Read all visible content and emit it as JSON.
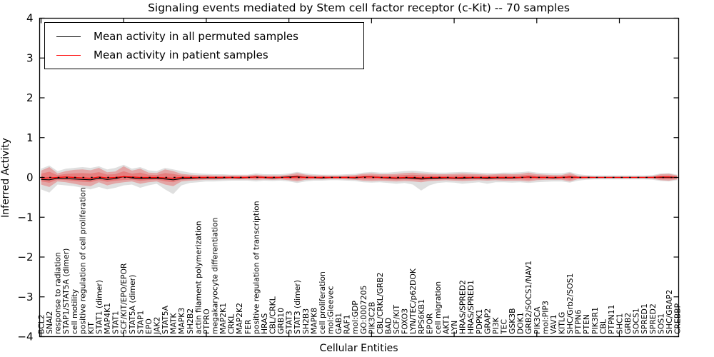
{
  "title": "Signaling events mediated by Stem cell factor receptor (c-Kit) -- 70 samples",
  "axes": {
    "y_label": "Inferred Activity",
    "x_label": "Cellular Entities",
    "y_ticks": [
      "4",
      "3",
      "2",
      "1",
      "0",
      "-1",
      "-2",
      "-3",
      "-4"
    ]
  },
  "legend": {
    "entries": [
      {
        "label": "Mean activity in all permuted samples",
        "color": "#000000"
      },
      {
        "label": "Mean activity in patient samples",
        "color": "#ff0000"
      }
    ]
  },
  "colors": {
    "permuted_line": "#000000",
    "patient_line": "#ff0000",
    "zero_dash_line": "#000000",
    "red_band_fill": "rgba(235,45,45,0.32)",
    "gray_band_fill": "rgba(140,140,140,0.28)",
    "frame": "#000000"
  },
  "chart_data": {
    "type": "line",
    "title": "Signaling events mediated by Stem cell factor receptor (c-Kit) -- 70 samples",
    "xlabel": "Cellular Entities",
    "ylabel": "Inferred Activity",
    "ylim": [
      -4,
      4
    ],
    "y_major_ticks": [
      4,
      3,
      2,
      1,
      0,
      -1,
      -2,
      -3,
      -4
    ],
    "x_major_tick_every": 10,
    "grid": false,
    "legend_position": "upper left",
    "categories": [
      "BCL2",
      "SNAI2",
      "response to radiation",
      "STAP1/STAT5A (dimer)",
      "cell motility",
      "positive regulation of cell proliferation",
      "KIT",
      "STAT1 (dimer)",
      "MAP4K1",
      "STAT1",
      "SCF/KIT/EPO/EPOR",
      "STAT5A (dimer)",
      "STAP1",
      "EPO",
      "JAK2",
      "STAT5A",
      "MATK",
      "MAPK3",
      "SH2B2",
      "actin filament polymerization",
      "PTPRO",
      "megakaryocyte differentiation",
      "MAP2K1",
      "CRKL",
      "MAP2K2",
      "FER",
      "positive regulation of transcription",
      "HRAS",
      "CBL/CRKL",
      "GRB10",
      "STAT3",
      "STAT3 (dimer)",
      "SH2B3",
      "MAPK8",
      "cell proliferation",
      "mol:Gleevec",
      "GAB1",
      "RAF1",
      "mol:GDP",
      "GO:0007205",
      "PIK3C2B",
      "CBL/CRKL/GRB2",
      "BAD",
      "SCF/KIT",
      "FOXO3",
      "LYN/TEC/p62DOK",
      "RPS6KB1",
      "EPOR",
      "cell migration",
      "AKT1",
      "LYN",
      "HRAS/SPRED2",
      "HRAS/SPRED1",
      "PDPK1",
      "GRAP2",
      "PI3K",
      "TEC",
      "GSK3B",
      "DOK1",
      "GRB2/SOCS1/NAV1",
      "PIK3CA",
      "mol:PIP3",
      "VAV1",
      "KITLG",
      "SHC/Grb2/SOS1",
      "PTPN6",
      "PTEN",
      "PIK3R1",
      "CBL",
      "PTPN11",
      "SHC1",
      "GRB2",
      "SOCS1",
      "SPRED1",
      "SPRED2",
      "SOS1",
      "SHC/GRAP2",
      "CREBBP"
    ],
    "series": [
      {
        "name": "Mean activity in all permuted samples",
        "values": [
          -0.05,
          -0.06,
          -0.02,
          -0.03,
          -0.04,
          -0.05,
          -0.06,
          -0.02,
          -0.05,
          -0.03,
          0.02,
          -0.01,
          -0.03,
          -0.02,
          -0.02,
          -0.04,
          -0.06,
          -0.03,
          -0.02,
          -0.01,
          -0.01,
          -0.01,
          -0.01,
          0.0,
          -0.01,
          0.0,
          0.01,
          0.0,
          -0.01,
          0.0,
          0.01,
          0.02,
          0.0,
          0.0,
          -0.01,
          0.0,
          0.0,
          0.0,
          -0.01,
          0.01,
          0.01,
          0.0,
          -0.01,
          -0.02,
          -0.01,
          -0.02,
          -0.04,
          -0.03,
          -0.02,
          -0.01,
          -0.02,
          -0.02,
          -0.01,
          -0.01,
          -0.02,
          -0.01,
          -0.01,
          -0.01,
          0.0,
          0.01,
          0.0,
          0.0,
          -0.01,
          0.0,
          0.01,
          0.0,
          0.0,
          0.0,
          0.0,
          0.0,
          0.0,
          0.0,
          0.0,
          0.0,
          0.0,
          0.0,
          0.0,
          0.0
        ]
      },
      {
        "name": "Mean activity in patient samples",
        "values": [
          -0.02,
          -0.01,
          0.0,
          0.01,
          0.0,
          -0.01,
          -0.02,
          0.01,
          -0.01,
          0.0,
          0.02,
          0.01,
          0.0,
          0.0,
          0.0,
          -0.01,
          -0.02,
          0.0,
          0.0,
          0.0,
          0.0,
          0.0,
          0.0,
          0.0,
          0.0,
          0.0,
          0.01,
          0.0,
          0.0,
          0.0,
          0.0,
          0.01,
          0.0,
          0.0,
          0.0,
          0.0,
          0.0,
          0.0,
          0.0,
          0.01,
          0.01,
          0.0,
          0.0,
          -0.01,
          0.0,
          0.0,
          -0.01,
          0.0,
          0.0,
          0.0,
          -0.01,
          0.0,
          0.0,
          0.0,
          0.0,
          0.0,
          0.0,
          0.0,
          0.0,
          0.01,
          0.0,
          0.0,
          0.0,
          0.0,
          0.01,
          0.0,
          0.0,
          0.0,
          0.0,
          0.0,
          0.0,
          0.0,
          0.0,
          0.0,
          0.0,
          0.01,
          0.01,
          0.0
        ]
      }
    ],
    "bands": [
      {
        "name": "permuted-range-band",
        "color_key": "gray_band_fill",
        "upper": [
          0.22,
          0.3,
          0.16,
          0.22,
          0.24,
          0.26,
          0.24,
          0.28,
          0.2,
          0.24,
          0.32,
          0.22,
          0.26,
          0.18,
          0.16,
          0.24,
          0.2,
          0.16,
          0.12,
          0.1,
          0.09,
          0.08,
          0.08,
          0.07,
          0.07,
          0.07,
          0.1,
          0.08,
          0.08,
          0.08,
          0.1,
          0.14,
          0.1,
          0.08,
          0.07,
          0.07,
          0.07,
          0.08,
          0.09,
          0.12,
          0.14,
          0.12,
          0.12,
          0.14,
          0.16,
          0.17,
          0.15,
          0.13,
          0.12,
          0.12,
          0.13,
          0.14,
          0.13,
          0.12,
          0.11,
          0.11,
          0.12,
          0.12,
          0.13,
          0.15,
          0.12,
          0.11,
          0.1,
          0.1,
          0.14,
          0.08,
          0.06,
          0.05,
          0.05,
          0.05,
          0.05,
          0.05,
          0.05,
          0.05,
          0.06,
          0.1,
          0.11,
          0.07
        ],
        "lower": [
          -0.3,
          -0.38,
          -0.18,
          -0.2,
          -0.22,
          -0.26,
          -0.3,
          -0.24,
          -0.3,
          -0.26,
          -0.2,
          -0.18,
          -0.26,
          -0.2,
          -0.16,
          -0.3,
          -0.42,
          -0.2,
          -0.14,
          -0.12,
          -0.1,
          -0.1,
          -0.09,
          -0.08,
          -0.08,
          -0.08,
          -0.1,
          -0.08,
          -0.09,
          -0.08,
          -0.1,
          -0.14,
          -0.1,
          -0.08,
          -0.08,
          -0.07,
          -0.07,
          -0.08,
          -0.09,
          -0.12,
          -0.13,
          -0.12,
          -0.14,
          -0.16,
          -0.14,
          -0.18,
          -0.33,
          -0.2,
          -0.14,
          -0.12,
          -0.13,
          -0.16,
          -0.14,
          -0.12,
          -0.16,
          -0.12,
          -0.12,
          -0.13,
          -0.12,
          -0.14,
          -0.12,
          -0.11,
          -0.1,
          -0.1,
          -0.13,
          -0.08,
          -0.06,
          -0.05,
          -0.05,
          -0.05,
          -0.05,
          -0.05,
          -0.05,
          -0.05,
          -0.06,
          -0.09,
          -0.1,
          -0.07
        ]
      },
      {
        "name": "patient-range-band",
        "color_key": "red_band_fill",
        "upper": [
          0.17,
          0.26,
          0.1,
          0.16,
          0.19,
          0.2,
          0.18,
          0.24,
          0.13,
          0.15,
          0.28,
          0.17,
          0.22,
          0.12,
          0.11,
          0.2,
          0.16,
          0.09,
          0.07,
          0.06,
          0.06,
          0.05,
          0.05,
          0.05,
          0.05,
          0.05,
          0.07,
          0.05,
          0.05,
          0.05,
          0.07,
          0.11,
          0.07,
          0.05,
          0.05,
          0.04,
          0.04,
          0.05,
          0.06,
          0.09,
          0.1,
          0.08,
          0.08,
          0.09,
          0.11,
          0.12,
          0.1,
          0.09,
          0.08,
          0.08,
          0.09,
          0.1,
          0.09,
          0.08,
          0.07,
          0.08,
          0.09,
          0.08,
          0.09,
          0.12,
          0.08,
          0.07,
          0.06,
          0.06,
          0.11,
          0.04,
          0.03,
          0.02,
          0.02,
          0.02,
          0.02,
          0.02,
          0.02,
          0.02,
          0.03,
          0.08,
          0.09,
          0.05
        ],
        "lower": [
          -0.18,
          -0.24,
          -0.1,
          -0.12,
          -0.16,
          -0.2,
          -0.22,
          -0.12,
          -0.2,
          -0.15,
          -0.12,
          -0.1,
          -0.16,
          -0.12,
          -0.1,
          -0.18,
          -0.22,
          -0.1,
          -0.08,
          -0.07,
          -0.06,
          -0.06,
          -0.05,
          -0.05,
          -0.05,
          -0.05,
          -0.06,
          -0.05,
          -0.06,
          -0.05,
          -0.07,
          -0.1,
          -0.06,
          -0.05,
          -0.05,
          -0.04,
          -0.04,
          -0.05,
          -0.06,
          -0.08,
          -0.09,
          -0.08,
          -0.09,
          -0.1,
          -0.09,
          -0.1,
          -0.12,
          -0.09,
          -0.08,
          -0.07,
          -0.08,
          -0.09,
          -0.08,
          -0.07,
          -0.08,
          -0.07,
          -0.08,
          -0.08,
          -0.08,
          -0.1,
          -0.07,
          -0.06,
          -0.06,
          -0.06,
          -0.1,
          -0.04,
          -0.03,
          -0.02,
          -0.02,
          -0.02,
          -0.02,
          -0.02,
          -0.02,
          -0.02,
          -0.03,
          -0.07,
          -0.08,
          -0.05
        ]
      }
    ],
    "zero_reference_line": {
      "style": "dashed",
      "y": 0
    }
  }
}
